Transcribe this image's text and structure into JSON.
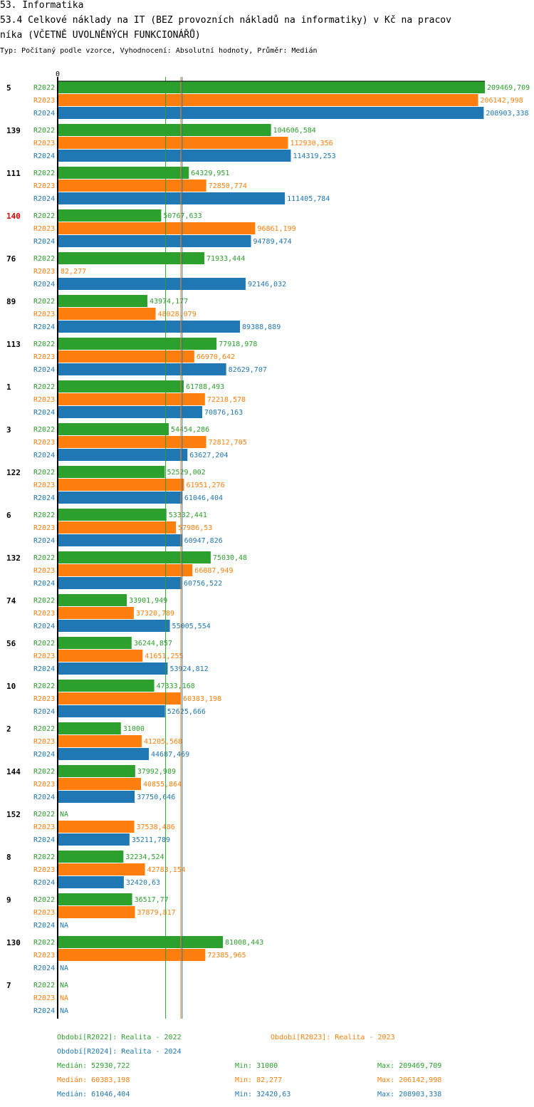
{
  "header": {
    "section": "53. Informatika",
    "title_line1": "53.4 Celkové náklady na IT (BEZ provozních nákladů na informatiky) v Kč na pracov",
    "title_line2": "níka (VČETNĚ UVOLNĚNÝCH FUNKCIONÁŘŮ)",
    "subtitle": "Typ: Počítaný podle vzorce, Vyhodnocení: Absolutní hodnoty, Průměr: Medián"
  },
  "colors": {
    "R2022": "#2ca02c",
    "R2023": "#ff7f0e",
    "R2024": "#1f77b4",
    "highlight": "#dd0000"
  },
  "chart_data": {
    "type": "bar",
    "orientation": "horizontal",
    "axis_zero_label": "0",
    "xlim": [
      0,
      209469.709
    ],
    "series_names": [
      "R2022",
      "R2023",
      "R2024"
    ],
    "na_label": "NA",
    "groups": [
      {
        "label": "5",
        "highlight": false,
        "values": [
          209469.709,
          206142.998,
          208903.338
        ],
        "labels": [
          "209469,709",
          "206142,998",
          "208903,338"
        ]
      },
      {
        "label": "139",
        "highlight": false,
        "values": [
          104606.584,
          112930.356,
          114319.253
        ],
        "labels": [
          "104606,584",
          "112930,356",
          "114319,253"
        ]
      },
      {
        "label": "111",
        "highlight": false,
        "values": [
          64329.951,
          72850.774,
          111405.784
        ],
        "labels": [
          "64329,951",
          "72850,774",
          "111405,784"
        ]
      },
      {
        "label": "140",
        "highlight": true,
        "values": [
          50767.633,
          96861.199,
          94789.474
        ],
        "labels": [
          "50767,633",
          "96861,199",
          "94789,474"
        ]
      },
      {
        "label": "76",
        "highlight": false,
        "values": [
          71933.444,
          82.277,
          92146.032
        ],
        "labels": [
          "71933,444",
          "82,277",
          "92146,032"
        ]
      },
      {
        "label": "89",
        "highlight": false,
        "values": [
          43974.177,
          48028.079,
          89388.889
        ],
        "labels": [
          "43974,177",
          "48028,079",
          "89388,889"
        ]
      },
      {
        "label": "113",
        "highlight": false,
        "values": [
          77918.978,
          66970.642,
          82629.707
        ],
        "labels": [
          "77918,978",
          "66970,642",
          "82629,707"
        ]
      },
      {
        "label": "1",
        "highlight": false,
        "values": [
          61788.493,
          72218.578,
          70876.163
        ],
        "labels": [
          "61788,493",
          "72218,578",
          "70876,163"
        ]
      },
      {
        "label": "3",
        "highlight": false,
        "values": [
          54454.286,
          72812.705,
          63627.204
        ],
        "labels": [
          "54454,286",
          "72812,705",
          "63627,204"
        ]
      },
      {
        "label": "122",
        "highlight": false,
        "values": [
          52529.002,
          61951.276,
          61046.404
        ],
        "labels": [
          "52529,002",
          "61951,276",
          "61046,404"
        ]
      },
      {
        "label": "6",
        "highlight": false,
        "values": [
          53332.441,
          57986.53,
          60947.826
        ],
        "labels": [
          "53332,441",
          "57986,53",
          "60947,826"
        ]
      },
      {
        "label": "132",
        "highlight": false,
        "values": [
          75030.48,
          66087.949,
          60756.522
        ],
        "labels": [
          "75030,48",
          "66087,949",
          "60756,522"
        ]
      },
      {
        "label": "74",
        "highlight": false,
        "values": [
          33901.949,
          37320.789,
          55005.554
        ],
        "labels": [
          "33901,949",
          "37320,789",
          "55005,554"
        ]
      },
      {
        "label": "56",
        "highlight": false,
        "values": [
          36244.857,
          41651.255,
          53924.812
        ],
        "labels": [
          "36244,857",
          "41651,255",
          "53924,812"
        ]
      },
      {
        "label": "10",
        "highlight": false,
        "values": [
          47333.168,
          60383.198,
          52625.666
        ],
        "labels": [
          "47333,168",
          "60383,198",
          "52625,666"
        ]
      },
      {
        "label": "2",
        "highlight": false,
        "values": [
          31000,
          41205.568,
          44687.469
        ],
        "labels": [
          "31000",
          "41205,568",
          "44687,469"
        ]
      },
      {
        "label": "144",
        "highlight": false,
        "values": [
          37992.989,
          40855.864,
          37750.646
        ],
        "labels": [
          "37992,989",
          "40855,864",
          "37750,646"
        ]
      },
      {
        "label": "152",
        "highlight": false,
        "values": [
          null,
          37538.486,
          35211.789
        ],
        "labels": [
          "NA",
          "37538,486",
          "35211,789"
        ]
      },
      {
        "label": "8",
        "highlight": false,
        "values": [
          32234.524,
          42783.154,
          32420.63
        ],
        "labels": [
          "32234,524",
          "42783,154",
          "32420,63"
        ]
      },
      {
        "label": "9",
        "highlight": false,
        "values": [
          36517.77,
          37879.817,
          null
        ],
        "labels": [
          "36517,77",
          "37879,817",
          "NA"
        ]
      },
      {
        "label": "130",
        "highlight": false,
        "values": [
          81008.443,
          72385.965,
          null
        ],
        "labels": [
          "81008,443",
          "72385,965",
          "NA"
        ]
      },
      {
        "label": "7",
        "highlight": false,
        "values": [
          null,
          null,
          null
        ],
        "labels": [
          "NA",
          "NA",
          "NA"
        ]
      }
    ],
    "reference_lines": {
      "R2022": 52930.722,
      "R2023": 60383.198,
      "R2024": 61046.404
    }
  },
  "legend": {
    "r2022": "Období[R2022]: Realita - 2022",
    "r2023": "Období[R2023]: Realita - 2023",
    "r2024": "Období[R2024]: Realita - 2024"
  },
  "stats": {
    "r2022": {
      "median": "Medián: 52930,722",
      "min": "Min: 31000",
      "max": "Max: 209469,709"
    },
    "r2023": {
      "median": "Medián: 60383,198",
      "min": "Min: 82,277",
      "max": "Max: 206142,998"
    },
    "r2024": {
      "median": "Medián: 61046,404",
      "min": "Min: 32420,63",
      "max": "Max: 208903,338"
    }
  }
}
